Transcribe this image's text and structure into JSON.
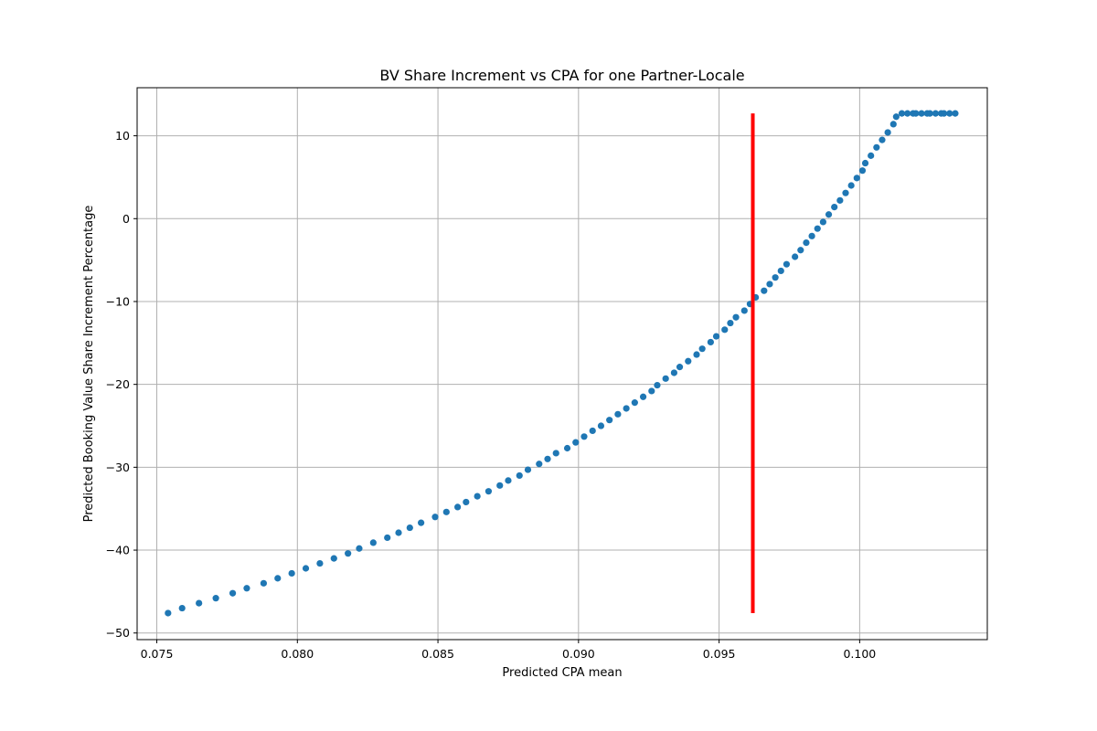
{
  "chart_data": {
    "type": "scatter",
    "title": "BV Share Increment vs CPA for one Partner-Locale",
    "xlabel": "Predicted CPA mean",
    "ylabel": "Predicted Booking Value Share Increment Percentage",
    "xlim": [
      0.0743,
      0.10454
    ],
    "ylim": [
      -50.8,
      15.8
    ],
    "x_ticks": [
      0.075,
      0.08,
      0.085,
      0.09,
      0.095,
      0.1
    ],
    "x_tick_labels": [
      "0.075",
      "0.080",
      "0.085",
      "0.090",
      "0.095",
      "0.100"
    ],
    "y_ticks": [
      -50,
      -40,
      -30,
      -20,
      -10,
      0,
      10
    ],
    "y_tick_labels": [
      "−50",
      "−40",
      "−30",
      "−20",
      "−10",
      "0",
      "10"
    ],
    "grid": true,
    "series": [
      {
        "marker_color": "#1f77b4",
        "x_start": 0.0754,
        "x_end": 0.1034,
        "x": [
          0.0754,
          0.0759,
          0.0765,
          0.0771,
          0.0777,
          0.0782,
          0.0788,
          0.0793,
          0.0798,
          0.0803,
          0.0808,
          0.0813,
          0.0818,
          0.0822,
          0.0827,
          0.0832,
          0.0836,
          0.084,
          0.0844,
          0.0849,
          0.0853,
          0.0857,
          0.086,
          0.0864,
          0.0868,
          0.0872,
          0.0875,
          0.0879,
          0.0882,
          0.0886,
          0.0889,
          0.0892,
          0.0896,
          0.0899,
          0.0902,
          0.0905,
          0.0908,
          0.0911,
          0.0914,
          0.0917,
          0.092,
          0.0923,
          0.0926,
          0.0928,
          0.0931,
          0.0934,
          0.0936,
          0.0939,
          0.0942,
          0.0944,
          0.0947,
          0.0949,
          0.0952,
          0.0954,
          0.0956,
          0.0959,
          0.0961,
          0.0963,
          0.0966,
          0.0968,
          0.097,
          0.0972,
          0.0974,
          0.0977,
          0.0979,
          0.0981,
          0.0983,
          0.0985,
          0.0987,
          0.0989,
          0.0991,
          0.0993,
          0.0995,
          0.0997,
          0.0999,
          0.1001,
          0.1002,
          0.1004,
          0.1006,
          0.1008,
          0.101,
          0.1012,
          0.1013,
          0.1015,
          0.1017,
          0.1019,
          0.102,
          0.1022,
          0.1024,
          0.1025,
          0.1027,
          0.1029,
          0.103,
          0.1032,
          0.1034
        ],
        "y": [
          -47.6,
          -47.0,
          -46.4,
          -45.8,
          -45.2,
          -44.6,
          -44.0,
          -43.4,
          -42.8,
          -42.2,
          -41.6,
          -41.0,
          -40.4,
          -39.8,
          -39.1,
          -38.5,
          -37.9,
          -37.3,
          -36.7,
          -36.0,
          -35.4,
          -34.8,
          -34.2,
          -33.5,
          -32.9,
          -32.2,
          -31.6,
          -31.0,
          -30.3,
          -29.6,
          -29.0,
          -28.3,
          -27.7,
          -27.0,
          -26.3,
          -25.6,
          -25.0,
          -24.3,
          -23.6,
          -22.9,
          -22.2,
          -21.5,
          -20.8,
          -20.1,
          -19.3,
          -18.6,
          -17.9,
          -17.2,
          -16.4,
          -15.7,
          -14.9,
          -14.2,
          -13.4,
          -12.6,
          -11.9,
          -11.1,
          -10.3,
          -9.5,
          -8.7,
          -7.9,
          -7.1,
          -6.3,
          -5.5,
          -4.6,
          -3.8,
          -2.9,
          -2.1,
          -1.2,
          -0.4,
          0.5,
          1.4,
          2.2,
          3.1,
          4.0,
          4.9,
          5.8,
          6.7,
          7.6,
          8.6,
          9.5,
          10.4,
          11.4,
          12.3,
          12.7,
          12.7,
          12.7,
          12.7,
          12.7,
          12.7,
          12.7,
          12.7,
          12.7,
          12.7,
          12.7,
          12.7
        ]
      }
    ],
    "reference_line": {
      "color": "#ff0000",
      "x": 0.0962,
      "y_from": -47.6,
      "y_to": 12.7
    }
  }
}
